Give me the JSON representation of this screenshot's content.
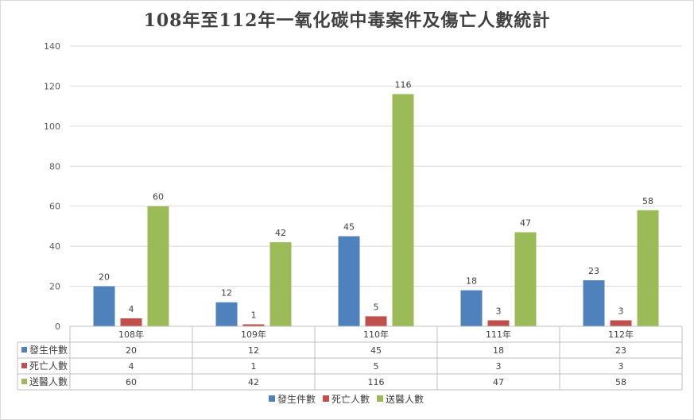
{
  "chart_data": {
    "type": "bar",
    "title": "108年至112年一氧化碳中毒案件及傷亡人數統計",
    "categories": [
      "108年",
      "109年",
      "110年",
      "111年",
      "112年"
    ],
    "series": [
      {
        "name": "發生件數",
        "values": [
          20,
          12,
          45,
          18,
          23
        ],
        "color": "#4f81bd"
      },
      {
        "name": "死亡人數",
        "values": [
          4,
          1,
          5,
          3,
          3
        ],
        "color": "#c0504d"
      },
      {
        "name": "送醫人數",
        "values": [
          60,
          42,
          116,
          47,
          58
        ],
        "color": "#9bbb59"
      }
    ],
    "ylim": [
      0,
      140
    ],
    "yticks": [
      0,
      20,
      40,
      60,
      80,
      100,
      120,
      140
    ],
    "grid": true,
    "data_table": true,
    "legend": "bottom"
  }
}
